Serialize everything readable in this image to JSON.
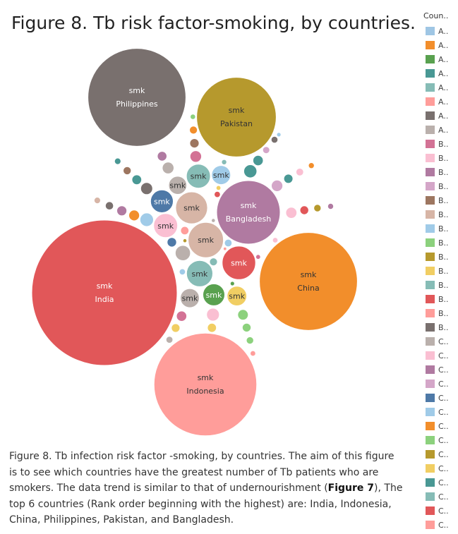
{
  "title": "Figure  8. Tb risk factor-smoking, by countries.",
  "legend": {
    "title": "Coun..",
    "items": [
      {
        "label": "A..",
        "color": "#9fc6e4"
      },
      {
        "label": "A..",
        "color": "#f28e2b"
      },
      {
        "label": "A..",
        "color": "#59a14f"
      },
      {
        "label": "A..",
        "color": "#499894"
      },
      {
        "label": "A..",
        "color": "#86bcb6"
      },
      {
        "label": "A..",
        "color": "#ff9d9a"
      },
      {
        "label": "A..",
        "color": "#79706e"
      },
      {
        "label": "A..",
        "color": "#bab0ac"
      },
      {
        "label": "B..",
        "color": "#d37295"
      },
      {
        "label": "B..",
        "color": "#fabfd2"
      },
      {
        "label": "B..",
        "color": "#b07aa1"
      },
      {
        "label": "B..",
        "color": "#d4a6c8"
      },
      {
        "label": "B..",
        "color": "#9d7660"
      },
      {
        "label": "B..",
        "color": "#d7b5a6"
      },
      {
        "label": "B..",
        "color": "#a0cbe8"
      },
      {
        "label": "B..",
        "color": "#8cd17d"
      },
      {
        "label": "B..",
        "color": "#b6992d"
      },
      {
        "label": "B..",
        "color": "#f1ce63"
      },
      {
        "label": "B..",
        "color": "#86bcb6"
      },
      {
        "label": "B..",
        "color": "#e15759"
      },
      {
        "label": "B..",
        "color": "#ff9d9a"
      },
      {
        "label": "B..",
        "color": "#79706e"
      },
      {
        "label": "C..",
        "color": "#bab0ac"
      },
      {
        "label": "C..",
        "color": "#fabfd2"
      },
      {
        "label": "C..",
        "color": "#b07aa1"
      },
      {
        "label": "C..",
        "color": "#d4a6c8"
      },
      {
        "label": "C..",
        "color": "#4e79a7"
      },
      {
        "label": "C..",
        "color": "#a0cbe8"
      },
      {
        "label": "C..",
        "color": "#f28e2b"
      },
      {
        "label": "C..",
        "color": "#8cd17d"
      },
      {
        "label": "C..",
        "color": "#b6992d"
      },
      {
        "label": "C..",
        "color": "#f1ce63"
      },
      {
        "label": "C..",
        "color": "#499894"
      },
      {
        "label": "C..",
        "color": "#86bcb6"
      },
      {
        "label": "C..",
        "color": "#e15759"
      },
      {
        "label": "C..",
        "color": "#ff9d9a"
      }
    ]
  },
  "caption": {
    "before": "Figure 8. Tb infection risk factor -smoking, by countries. The aim of this figure is to see which countries have the greatest number of Tb patients who are smokers. The data trend is similar to that of undernourishment (",
    "bold": "Figure 7",
    "after": "), The top 6 countries (Rank order beginning with the highest) are: India, Indonesia, China, Philippines, Pakistan, and Bangladesh."
  },
  "chart_data": {
    "type": "bubble",
    "measure_label": "smk",
    "bubbles": [
      {
        "country": "India",
        "value": 11000,
        "color": "#e15759",
        "label": "smk",
        "show_country": true,
        "label_color": "#ffffff"
      },
      {
        "country": "Indonesia",
        "value": 5500,
        "color": "#ff9d9a",
        "label": "smk",
        "show_country": true,
        "label_color": "#333333"
      },
      {
        "country": "China",
        "value": 5000,
        "color": "#f28e2b",
        "label": "smk",
        "show_country": true,
        "label_color": "#333333"
      },
      {
        "country": "Philippines",
        "value": 5000,
        "color": "#79706e",
        "label": "smk",
        "show_country": true,
        "label_color": "#ffffff"
      },
      {
        "country": "Pakistan",
        "value": 3300,
        "color": "#b6992d",
        "label": "smk",
        "show_country": true,
        "label_color": "#333333"
      },
      {
        "country": "Bangladesh",
        "value": 2100,
        "color": "#b07aa1",
        "label": "smk",
        "show_country": true,
        "label_color": "#ffffff"
      },
      {
        "country": "",
        "value": 650,
        "color": "#d7b5a6",
        "label": "smk",
        "show_country": false,
        "label_color": "#333333"
      },
      {
        "country": "",
        "value": 580,
        "color": "#e15759",
        "label": "smk",
        "show_country": false,
        "label_color": "#ffffff"
      },
      {
        "country": "",
        "value": 530,
        "color": "#d7b5a6",
        "label": "smk",
        "show_country": false,
        "label_color": "#333333"
      },
      {
        "country": "",
        "value": 360,
        "color": "#86bcb6",
        "label": "smk",
        "show_country": false,
        "label_color": "#333333"
      },
      {
        "country": "",
        "value": 300,
        "color": "#fabfd2",
        "label": "smk",
        "show_country": false,
        "label_color": "#333333"
      },
      {
        "country": "",
        "value": 300,
        "color": "#86bcb6",
        "label": "smk",
        "show_country": false,
        "label_color": "#333333"
      },
      {
        "country": "",
        "value": 270,
        "color": "#4e79a7",
        "label": "smk",
        "show_country": false,
        "label_color": "#ffffff"
      },
      {
        "country": "",
        "value": 250,
        "color": "#59a14f",
        "label": "smk",
        "show_country": false,
        "label_color": "#ffffff"
      },
      {
        "country": "",
        "value": 200,
        "color": "#f1ce63",
        "label": "smk",
        "show_country": false,
        "label_color": "#333333"
      },
      {
        "country": "",
        "value": 190,
        "color": "#a0cbe8",
        "label": "smk",
        "show_country": false,
        "label_color": "#333333"
      },
      {
        "country": "",
        "value": 190,
        "color": "#bab0ac",
        "label": "smk",
        "show_country": false,
        "label_color": "#333333"
      },
      {
        "country": "",
        "value": 170,
        "color": "#bab0ac",
        "label": "smk",
        "show_country": false,
        "label_color": "#333333"
      },
      {
        "country": "",
        "value": 120,
        "color": "#bab0ac",
        "label": "",
        "show_country": false,
        "label_color": "#333333"
      },
      {
        "country": "",
        "value": 95,
        "color": "#a0cbe8",
        "label": "",
        "show_country": false,
        "label_color": "#333333"
      },
      {
        "country": "",
        "value": 90,
        "color": "#499894",
        "label": "",
        "show_country": false,
        "label_color": "#333333"
      },
      {
        "country": "",
        "value": 85,
        "color": "#fabfd2",
        "label": "",
        "show_country": false,
        "label_color": "#333333"
      },
      {
        "country": "",
        "value": 75,
        "color": "#79706e",
        "label": "",
        "show_country": false,
        "label_color": "#333333"
      },
      {
        "country": "",
        "value": 72,
        "color": "#bab0ac",
        "label": "",
        "show_country": false,
        "label_color": "#333333"
      },
      {
        "country": "",
        "value": 70,
        "color": "#d37295",
        "label": "",
        "show_country": false,
        "label_color": "#333333"
      },
      {
        "country": "",
        "value": 68,
        "color": "#d4a6c8",
        "label": "",
        "show_country": false,
        "label_color": "#333333"
      },
      {
        "country": "",
        "value": 65,
        "color": "#fabfd2",
        "label": "",
        "show_country": false,
        "label_color": "#333333"
      },
      {
        "country": "",
        "value": 60,
        "color": "#f28e2b",
        "label": "",
        "show_country": false,
        "label_color": "#333333"
      },
      {
        "country": "",
        "value": 58,
        "color": "#8cd17d",
        "label": "",
        "show_country": false,
        "label_color": "#333333"
      },
      {
        "country": "",
        "value": 55,
        "color": "#d37295",
        "label": "",
        "show_country": false,
        "label_color": "#333333"
      },
      {
        "country": "",
        "value": 55,
        "color": "#499894",
        "label": "",
        "show_country": false,
        "label_color": "#333333"
      },
      {
        "country": "",
        "value": 52,
        "color": "#b07aa1",
        "label": "",
        "show_country": false,
        "label_color": "#333333"
      },
      {
        "country": "",
        "value": 50,
        "color": "#499894",
        "label": "",
        "show_country": false,
        "label_color": "#333333"
      },
      {
        "country": "",
        "value": 48,
        "color": "#b07aa1",
        "label": "",
        "show_country": false,
        "label_color": "#333333"
      },
      {
        "country": "",
        "value": 46,
        "color": "#4e79a7",
        "label": "",
        "show_country": false,
        "label_color": "#333333"
      },
      {
        "country": "",
        "value": 45,
        "color": "#9d7660",
        "label": "",
        "show_country": false,
        "label_color": "#333333"
      },
      {
        "country": "",
        "value": 44,
        "color": "#499894",
        "label": "",
        "show_country": false,
        "label_color": "#333333"
      },
      {
        "country": "",
        "value": 42,
        "color": "#f1ce63",
        "label": "",
        "show_country": false,
        "label_color": "#333333"
      },
      {
        "country": "",
        "value": 40,
        "color": "#e15759",
        "label": "",
        "show_country": false,
        "label_color": "#333333"
      },
      {
        "country": "",
        "value": 40,
        "color": "#8cd17d",
        "label": "",
        "show_country": false,
        "label_color": "#333333"
      },
      {
        "country": "",
        "value": 38,
        "color": "#f1ce63",
        "label": "",
        "show_country": false,
        "label_color": "#333333"
      },
      {
        "country": "",
        "value": 36,
        "color": "#ff9d9a",
        "label": "",
        "show_country": false,
        "label_color": "#333333"
      },
      {
        "country": "",
        "value": 35,
        "color": "#79706e",
        "label": "",
        "show_country": false,
        "label_color": "#333333"
      },
      {
        "country": "",
        "value": 34,
        "color": "#9d7660",
        "label": "",
        "show_country": false,
        "label_color": "#333333"
      },
      {
        "country": "",
        "value": 33,
        "color": "#f28e2b",
        "label": "",
        "show_country": false,
        "label_color": "#333333"
      },
      {
        "country": "",
        "value": 32,
        "color": "#86bcb6",
        "label": "",
        "show_country": false,
        "label_color": "#333333"
      },
      {
        "country": "",
        "value": 30,
        "color": "#a0cbe8",
        "label": "",
        "show_country": false,
        "label_color": "#333333"
      },
      {
        "country": "",
        "value": 30,
        "color": "#fabfd2",
        "label": "",
        "show_country": false,
        "label_color": "#333333"
      },
      {
        "country": "",
        "value": 28,
        "color": "#b6992d",
        "label": "",
        "show_country": false,
        "label_color": "#333333"
      },
      {
        "country": "",
        "value": 28,
        "color": "#8cd17d",
        "label": "",
        "show_country": false,
        "label_color": "#333333"
      },
      {
        "country": "",
        "value": 26,
        "color": "#d4a6c8",
        "label": "",
        "show_country": false,
        "label_color": "#333333"
      },
      {
        "country": "",
        "value": 25,
        "color": "#bab0ac",
        "label": "",
        "show_country": false,
        "label_color": "#333333"
      },
      {
        "country": "",
        "value": 24,
        "color": "#79706e",
        "label": "",
        "show_country": false,
        "label_color": "#333333"
      },
      {
        "country": "",
        "value": 22,
        "color": "#d7b5a6",
        "label": "",
        "show_country": false,
        "label_color": "#333333"
      },
      {
        "country": "",
        "value": 22,
        "color": "#499894",
        "label": "",
        "show_country": false,
        "label_color": "#333333"
      },
      {
        "country": "",
        "value": 20,
        "color": "#e15759",
        "label": "",
        "show_country": false,
        "label_color": "#333333"
      },
      {
        "country": "",
        "value": 20,
        "color": "#a0cbe8",
        "label": "",
        "show_country": false,
        "label_color": "#333333"
      },
      {
        "country": "",
        "value": 18,
        "color": "#f28e2b",
        "label": "",
        "show_country": false,
        "label_color": "#333333"
      },
      {
        "country": "",
        "value": 18,
        "color": "#b07aa1",
        "label": "",
        "show_country": false,
        "label_color": "#333333"
      },
      {
        "country": "",
        "value": 16,
        "color": "#fabfd2",
        "label": "",
        "show_country": false,
        "label_color": "#333333"
      },
      {
        "country": "",
        "value": 16,
        "color": "#ff9d9a",
        "label": "",
        "show_country": false,
        "label_color": "#333333"
      },
      {
        "country": "",
        "value": 15,
        "color": "#8cd17d",
        "label": "",
        "show_country": false,
        "label_color": "#333333"
      },
      {
        "country": "",
        "value": 14,
        "color": "#86bcb6",
        "label": "",
        "show_country": false,
        "label_color": "#333333"
      },
      {
        "country": "",
        "value": 12,
        "color": "#f1ce63",
        "label": "",
        "show_country": false,
        "label_color": "#333333"
      },
      {
        "country": "",
        "value": 12,
        "color": "#d37295",
        "label": "",
        "show_country": false,
        "label_color": "#333333"
      },
      {
        "country": "",
        "value": 10,
        "color": "#59a14f",
        "label": "",
        "show_country": false,
        "label_color": "#333333"
      },
      {
        "country": "",
        "value": 10,
        "color": "#a0cbe8",
        "label": "",
        "show_country": false,
        "label_color": "#333333"
      },
      {
        "country": "",
        "value": 8,
        "color": "#bab0ac",
        "label": "",
        "show_country": false,
        "label_color": "#333333"
      },
      {
        "country": "",
        "value": 8,
        "color": "#b6992d",
        "label": "",
        "show_country": false,
        "label_color": "#333333"
      },
      {
        "country": "",
        "value": 6,
        "color": "#ff9d9a",
        "label": "",
        "show_country": false,
        "label_color": "#333333"
      }
    ]
  }
}
